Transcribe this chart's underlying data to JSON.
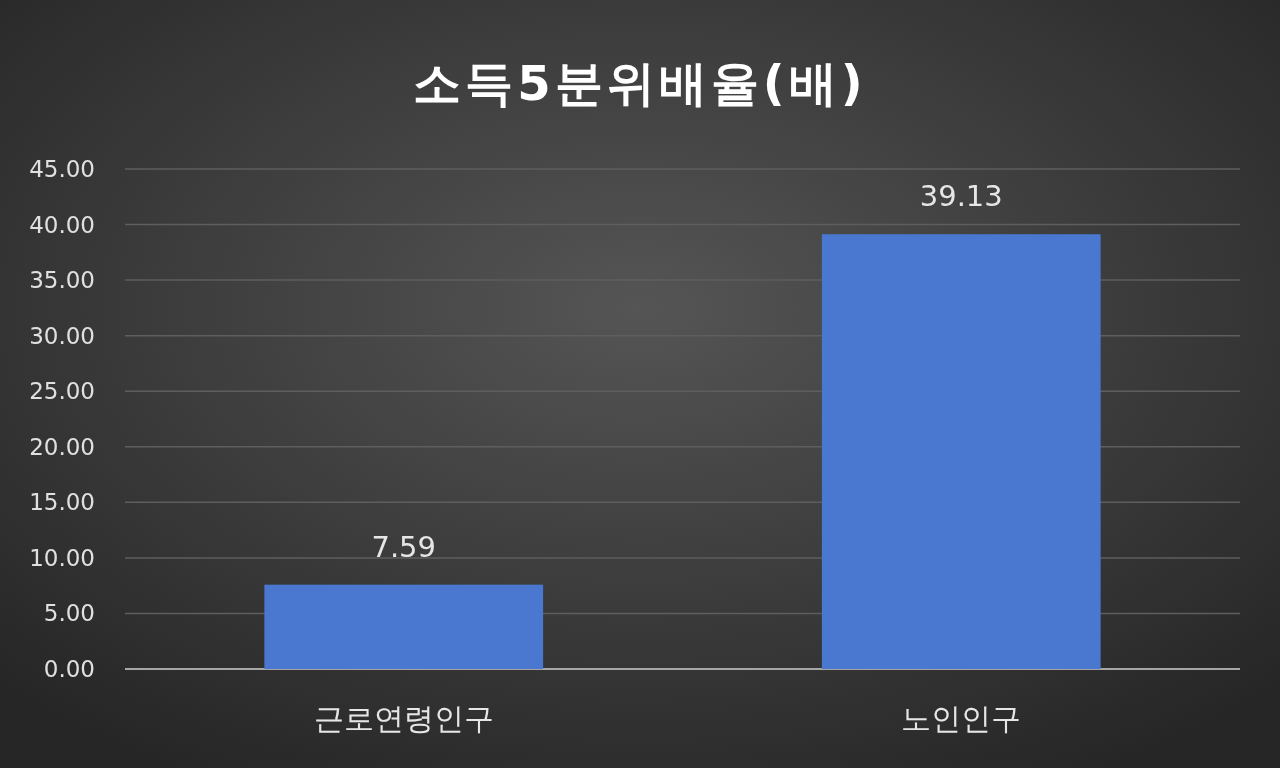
{
  "chart_data": {
    "type": "bar",
    "title": "소득5분위배율(배)",
    "categories": [
      "근로연령인구",
      "노인인구"
    ],
    "values": [
      7.59,
      39.13
    ],
    "color": "#4a78d0",
    "ylim": [
      0,
      45
    ],
    "yticks": [
      {
        "value": 0,
        "label": "0.00"
      },
      {
        "value": 5,
        "label": "5.00"
      },
      {
        "value": 10,
        "label": "10.00"
      },
      {
        "value": 15,
        "label": "15.00"
      },
      {
        "value": 20,
        "label": "20.00"
      },
      {
        "value": 25,
        "label": "25.00"
      },
      {
        "value": 30,
        "label": "30.00"
      },
      {
        "value": 35,
        "label": "35.00"
      },
      {
        "value": 40,
        "label": "40.00"
      },
      {
        "value": 45,
        "label": "45.00"
      }
    ],
    "grid": "y",
    "data_labels": true
  }
}
